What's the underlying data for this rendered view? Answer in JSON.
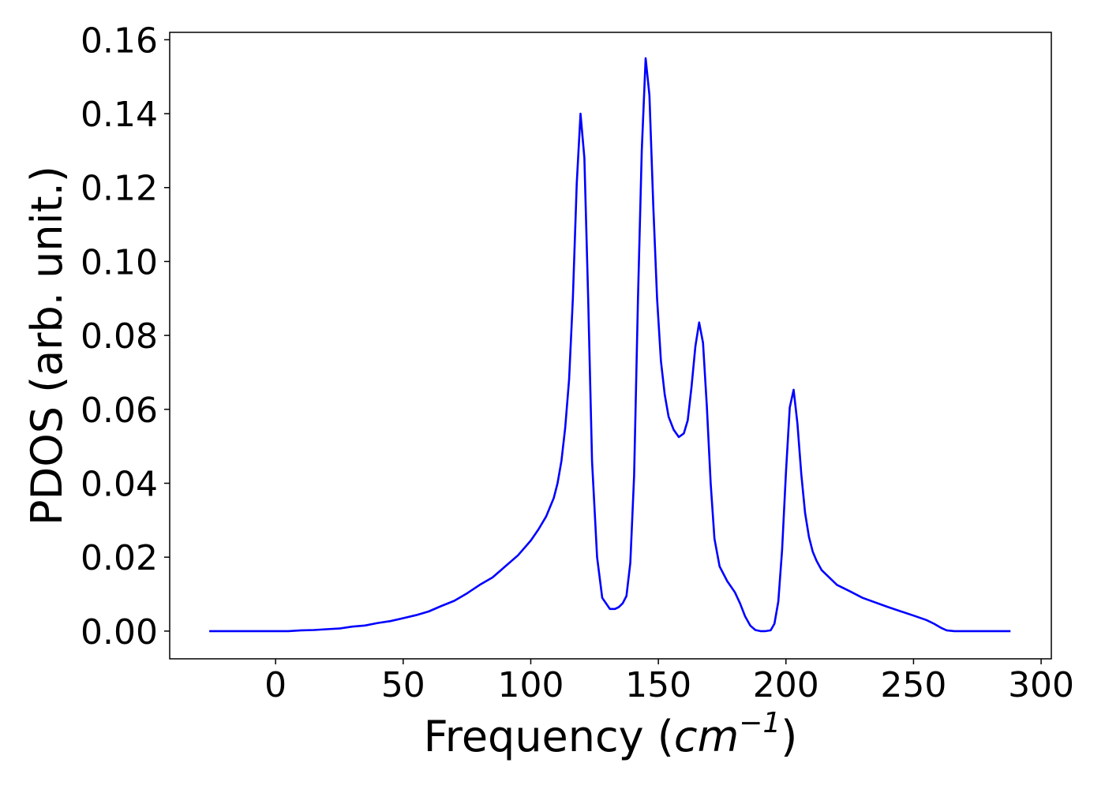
{
  "chart_data": {
    "type": "line",
    "title": "",
    "xlabel": "Frequency (",
    "xlabel_math_base": "cm",
    "xlabel_math_sup": "−1",
    "xlabel_close": ")",
    "ylabel": "PDOS (arb. unit.)",
    "xlim": [
      -41.5,
      304
    ],
    "ylim": [
      -0.0075,
      0.162
    ],
    "x_ticks": [
      0,
      50,
      100,
      150,
      200,
      250,
      300
    ],
    "x_tick_labels": [
      "0",
      "50",
      "100",
      "150",
      "200",
      "250",
      "300"
    ],
    "y_ticks": [
      0.0,
      0.02,
      0.04,
      0.06,
      0.08,
      0.1,
      0.12,
      0.14,
      0.16
    ],
    "y_tick_labels": [
      "0.00",
      "0.02",
      "0.04",
      "0.06",
      "0.08",
      "0.10",
      "0.12",
      "0.14",
      "0.16"
    ],
    "grid": false,
    "series": [
      {
        "color": "#0000ff",
        "x": [
          -26,
          -10,
          0,
          5,
          10,
          15,
          20,
          25,
          30,
          35,
          40,
          45,
          50,
          55,
          60,
          65,
          70,
          75,
          80,
          85,
          90,
          95,
          100,
          103,
          106,
          109,
          110.5,
          112,
          113.5,
          115,
          116.5,
          118,
          119.5,
          121,
          122.5,
          124,
          126,
          128,
          131,
          133,
          134.5,
          136,
          137.5,
          139,
          140.5,
          142,
          143.5,
          145,
          146.5,
          148,
          149.5,
          151,
          152.5,
          154,
          156,
          158,
          160,
          161.5,
          163,
          164.5,
          166,
          167.5,
          169,
          170.5,
          172,
          174,
          177,
          180,
          182,
          184,
          186,
          188,
          190,
          192,
          194,
          195.5,
          197,
          198.5,
          200,
          201.5,
          203,
          204.5,
          206,
          207.5,
          209,
          210.5,
          212,
          214,
          217,
          220,
          225,
          230,
          240,
          250,
          255,
          258,
          261,
          263,
          266,
          270,
          280,
          288
        ],
        "y": [
          0.0,
          0.0,
          0.0,
          0.0,
          0.0002,
          0.0003,
          0.0005,
          0.0007,
          0.0012,
          0.0015,
          0.0022,
          0.0027,
          0.0035,
          0.0043,
          0.0053,
          0.0068,
          0.0082,
          0.0102,
          0.0125,
          0.0145,
          0.0175,
          0.0205,
          0.0245,
          0.0275,
          0.031,
          0.036,
          0.04,
          0.046,
          0.055,
          0.068,
          0.09,
          0.121,
          0.14,
          0.128,
          0.09,
          0.046,
          0.02,
          0.009,
          0.006,
          0.006,
          0.0065,
          0.0075,
          0.0095,
          0.0185,
          0.042,
          0.09,
          0.13,
          0.155,
          0.145,
          0.115,
          0.09,
          0.073,
          0.064,
          0.058,
          0.0545,
          0.0525,
          0.0535,
          0.057,
          0.066,
          0.077,
          0.0835,
          0.078,
          0.061,
          0.04,
          0.025,
          0.0175,
          0.0135,
          0.0105,
          0.0075,
          0.004,
          0.0015,
          0.0003,
          0.0,
          0.0,
          0.0002,
          0.002,
          0.008,
          0.022,
          0.043,
          0.0605,
          0.0653,
          0.0562,
          0.0425,
          0.032,
          0.0255,
          0.0215,
          0.019,
          0.0165,
          0.0145,
          0.0125,
          0.0108,
          0.009,
          0.0065,
          0.0042,
          0.003,
          0.002,
          0.0008,
          0.0002,
          0.0,
          0.0,
          0.0,
          0.0
        ]
      }
    ]
  }
}
